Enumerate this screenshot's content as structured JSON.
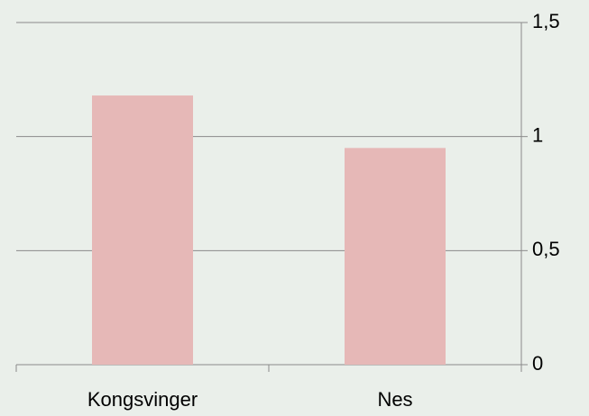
{
  "chart_data": {
    "type": "bar",
    "categories": [
      "Kongsvinger",
      "Nes"
    ],
    "values": [
      1.18,
      0.95
    ],
    "color": "#e6b8b7",
    "ylim": [
      0,
      1.5
    ],
    "yticks": [
      0,
      {
        "value": 0.5,
        "label": "0,5"
      },
      1,
      {
        "value": 1.5,
        "label": "1,5"
      }
    ],
    "grid": true,
    "y_axis_side": "right"
  }
}
